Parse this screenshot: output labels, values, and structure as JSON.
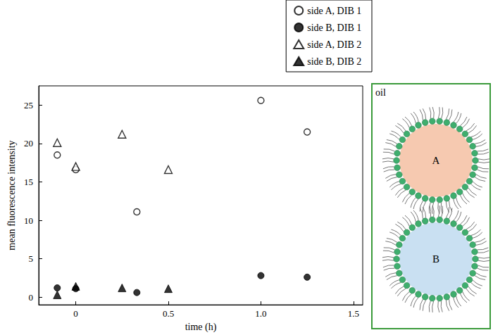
{
  "chart_data": {
    "type": "scatter",
    "x_label": "time (h)",
    "y_label": "mean fluorescence intensity",
    "xlim": [
      -0.2,
      1.55
    ],
    "xticks": [
      0,
      0.5,
      {
        "value": 1,
        "label": "1.0"
      },
      1.5
    ],
    "ylim": [
      -1,
      27.5
    ],
    "yticks": [
      0,
      5,
      10,
      15,
      20,
      25
    ],
    "grid": false,
    "legend": "top-right",
    "series": [
      {
        "name": "side A, DIB 1",
        "color": "#000000",
        "marker": "circle-open",
        "x": [
          -0.1,
          0,
          0.33,
          1.0,
          1.25
        ],
        "values": [
          18.5,
          16.6,
          11.1,
          25.6,
          21.5
        ]
      },
      {
        "name": "side B, DIB 1",
        "color": "#000000",
        "marker": "circle",
        "x": [
          -0.1,
          0,
          0.33,
          1.0,
          1.25
        ],
        "values": [
          1.2,
          1.1,
          0.6,
          2.8,
          2.6
        ]
      },
      {
        "name": "side A, DIB 2",
        "color": "#000000",
        "marker": "triangle-open",
        "x": [
          -0.1,
          0,
          0.25,
          0.5
        ],
        "values": [
          20.1,
          17.0,
          21.2,
          16.6
        ]
      },
      {
        "name": "side B, DIB 2",
        "color": "#000000",
        "marker": "triangle",
        "x": [
          -0.1,
          0,
          0.25,
          0.5
        ],
        "values": [
          0.3,
          1.4,
          1.2,
          1.1
        ]
      }
    ]
  },
  "diagram": {
    "label": "oil",
    "border_color": "#3a9a3a",
    "droplets": [
      {
        "label": "A",
        "color": "#f6c9b0"
      },
      {
        "label": "B",
        "color": "#c9e0f2"
      }
    ]
  }
}
